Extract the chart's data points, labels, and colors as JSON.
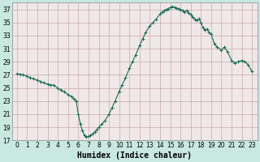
{
  "title": "",
  "xlabel": "Humidex (Indice chaleur)",
  "ylabel": "",
  "bg_color": "#e8f4f0",
  "plot_bg_color": "#f0e8e8",
  "grid_color": "#c8a8a8",
  "line_color": "#1a6b5a",
  "marker_color": "#1a6b5a",
  "outer_bg": "#c8e8e0",
  "xlim": [
    -0.5,
    23.5
  ],
  "ylim": [
    17,
    38
  ],
  "yticks": [
    17,
    19,
    21,
    23,
    25,
    27,
    29,
    31,
    33,
    35,
    37
  ],
  "xticks": [
    0,
    1,
    2,
    3,
    4,
    5,
    6,
    7,
    8,
    9,
    10,
    11,
    12,
    13,
    14,
    15,
    16,
    17,
    18,
    19,
    20,
    21,
    22,
    23
  ],
  "x": [
    0,
    0.3,
    0.6,
    1.0,
    1.3,
    1.6,
    2.0,
    2.3,
    2.6,
    3.0,
    3.3,
    3.6,
    4.0,
    4.3,
    4.6,
    5.0,
    5.3,
    5.6,
    5.8,
    6.0,
    6.2,
    6.4,
    6.6,
    6.8,
    7.0,
    7.2,
    7.4,
    7.6,
    7.8,
    8.0,
    8.3,
    8.6,
    9.0,
    9.3,
    9.6,
    10.0,
    10.3,
    10.6,
    11.0,
    11.3,
    11.6,
    12.0,
    12.3,
    12.6,
    13.0,
    13.3,
    13.6,
    14.0,
    14.2,
    14.4,
    14.6,
    14.8,
    15.0,
    15.2,
    15.4,
    15.6,
    15.8,
    16.0,
    16.2,
    16.4,
    16.6,
    16.8,
    17.0,
    17.2,
    17.4,
    17.6,
    17.8,
    18.0,
    18.2,
    18.4,
    18.6,
    18.8,
    19.0,
    19.3,
    19.6,
    20.0,
    20.3,
    20.6,
    21.0,
    21.3,
    21.6,
    22.0,
    22.3,
    22.6,
    23.0
  ],
  "y": [
    27.2,
    27.1,
    27.0,
    26.8,
    26.6,
    26.4,
    26.2,
    26.0,
    25.8,
    25.6,
    25.5,
    25.4,
    25.0,
    24.7,
    24.4,
    24.0,
    23.7,
    23.3,
    23.0,
    21.0,
    19.5,
    18.5,
    17.8,
    17.5,
    17.6,
    17.8,
    18.0,
    18.3,
    18.6,
    19.0,
    19.5,
    20.0,
    21.0,
    22.0,
    23.0,
    24.5,
    25.5,
    26.5,
    28.0,
    29.0,
    30.0,
    31.5,
    32.5,
    33.5,
    34.5,
    35.0,
    35.5,
    36.3,
    36.6,
    36.8,
    37.0,
    37.1,
    37.3,
    37.4,
    37.3,
    37.2,
    37.1,
    37.0,
    36.8,
    36.6,
    36.8,
    36.5,
    36.2,
    35.8,
    35.5,
    35.3,
    35.6,
    35.0,
    34.2,
    33.8,
    34.0,
    33.5,
    33.2,
    31.8,
    31.2,
    30.8,
    31.2,
    30.5,
    29.2,
    28.8,
    29.0,
    29.2,
    29.0,
    28.6,
    27.5
  ]
}
